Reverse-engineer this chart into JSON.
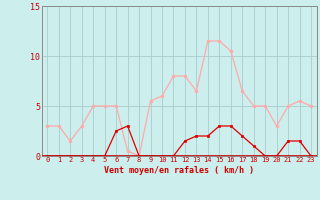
{
  "x": [
    0,
    1,
    2,
    3,
    4,
    5,
    6,
    7,
    8,
    9,
    10,
    11,
    12,
    13,
    14,
    15,
    16,
    17,
    18,
    19,
    20,
    21,
    22,
    23
  ],
  "rafales": [
    3,
    3,
    1.5,
    3,
    5,
    5,
    5,
    0.5,
    0,
    5.5,
    6,
    8,
    8,
    6.5,
    11.5,
    11.5,
    10.5,
    6.5,
    5,
    5,
    3,
    5,
    5.5,
    5
  ],
  "moyen": [
    0,
    0,
    0,
    0,
    0,
    0,
    2.5,
    3,
    0,
    0,
    0,
    0,
    1.5,
    2,
    2,
    3,
    3,
    2,
    1,
    0,
    0,
    1.5,
    1.5,
    0
  ],
  "xlabel": "Vent moyen/en rafales ( km/h )",
  "ylim": [
    0,
    15
  ],
  "yticks": [
    0,
    5,
    10,
    15
  ],
  "xticks": [
    0,
    1,
    2,
    3,
    4,
    5,
    6,
    7,
    8,
    9,
    10,
    11,
    12,
    13,
    14,
    15,
    16,
    17,
    18,
    19,
    20,
    21,
    22,
    23
  ],
  "bg_color": "#cceeed",
  "grid_color": "#aacccc",
  "line_color_rafales": "#ffaaaa",
  "line_color_moyen": "#dd0000",
  "marker_color_rafales": "#ffaaaa",
  "marker_color_moyen": "#dd0000",
  "label_color": "#cc0000",
  "axis_color": "#888888"
}
